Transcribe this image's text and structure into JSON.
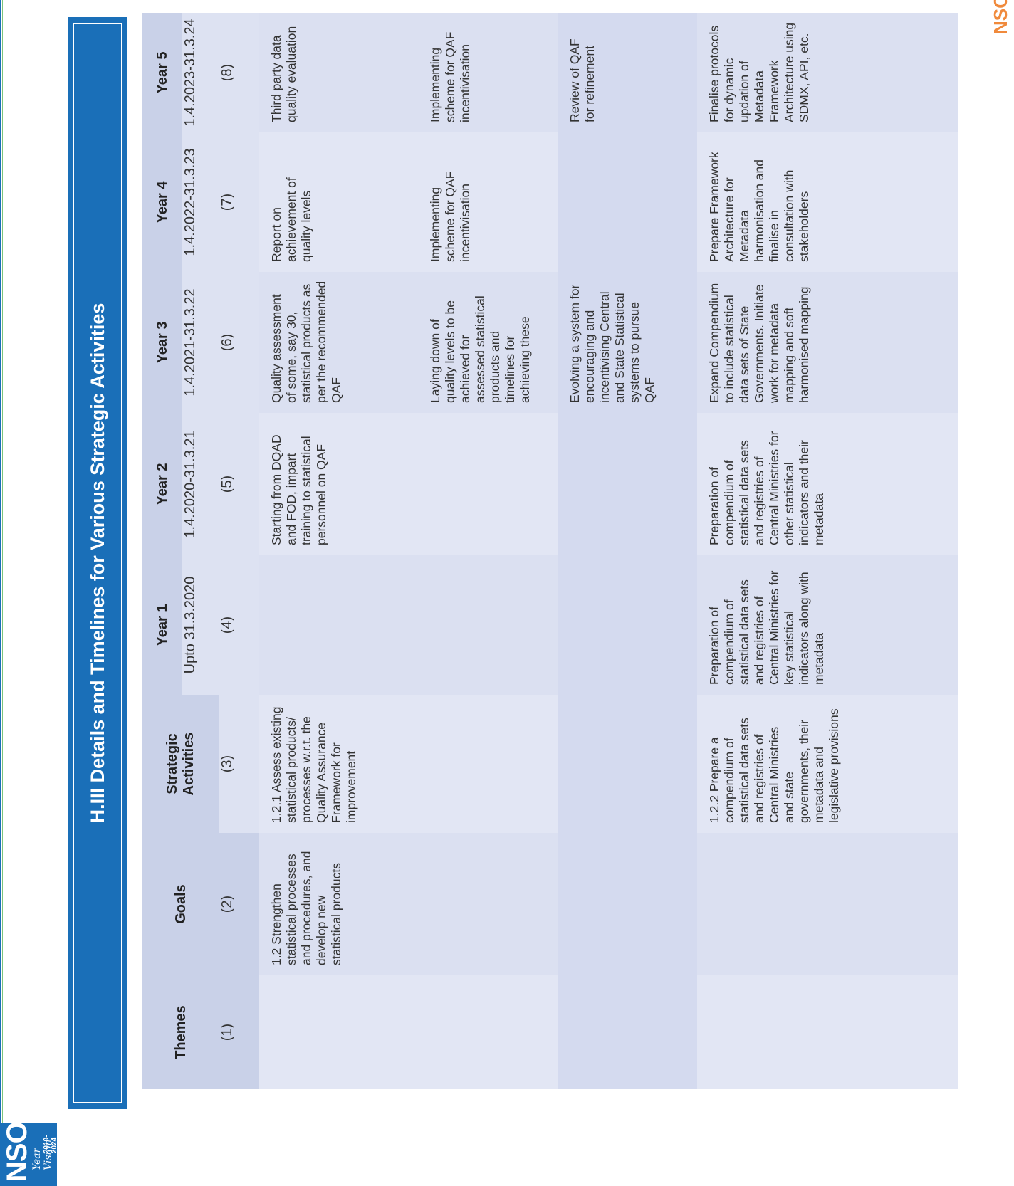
{
  "logo": {
    "text": "NSO",
    "tagline": "Year Vision",
    "years": "2019-2024"
  },
  "corner_logo": "NSO",
  "title": "H.III  Details and Timelines for Various Strategic Activities",
  "headers": {
    "themes": "Themes",
    "goals": "Goals",
    "activities": "Strategic Activities",
    "year1": "Year 1",
    "year2": "Year 2",
    "year3": "Year 3",
    "year4": "Year 4",
    "year5": "Year 5"
  },
  "dates": {
    "year1": "Upto 31.3.2020",
    "year2": "1.4.2020-31.3.21",
    "year3": "1.4.2021-31.3.22",
    "year4": "1.4.2022-31.3.23",
    "year5": "1.4.2023-31.3.24"
  },
  "col_numbers": [
    "(1)",
    "(2)",
    "(3)",
    "(4)",
    "(5)",
    "(6)",
    "(7)",
    "(8)"
  ],
  "rows": [
    {
      "theme": "",
      "goal": "1.2 Strengthen statistical processes and procedures, and develop new statistical products",
      "activity": "1.2.1 Assess existing statistical products/ processes w.r.t. the Quality Assurance Framework for improvement",
      "year1": "",
      "year2": "Starting from DQAD and FOD, impart training to statistical personnel on QAF",
      "year3": "Quality assessment of some, say 30, statistical products as per the recommended QAF",
      "year4": "Report on achievement of quality levels",
      "year5": "Third party data quality evaluation"
    },
    {
      "theme": "",
      "goal": "",
      "activity": "",
      "year1": "",
      "year2": "",
      "year3": "Laying down of quality levels to be achieved for assessed statistical products and timelines for achieving these",
      "year4": "Implementing scheme for QAF incentivisation",
      "year5": "Implementing scheme for QAF incentivisation"
    },
    {
      "theme": "",
      "goal": "",
      "activity": "",
      "year1": "",
      "year2": "",
      "year3": "Evolving a system for encouraging and incentivising Central and State Statistical systems to pursue QAF",
      "year4": "",
      "year5": "Review of QAF for refinement"
    },
    {
      "theme": "",
      "goal": "",
      "activity": "1.2.2 Prepare a compendium of statistical data sets and registries of Central Ministries and state governments, their metadata and legislative provisions",
      "year1": "Preparation of compendium of statistical data sets and registries of Central Ministries for key statistical indicators along with metadata",
      "year2": "Preparation of compendium of statistical data sets and registries of Central Ministries for other statistical indicators and their metadata",
      "year3": "Expand Compendium to include statistical data sets of State Governments. Initiate work for metadata mapping and soft harmonised mapping",
      "year4": "Prepare Framework Architecture for Metadata harmonisation and finalise in consultation with stakeholders",
      "year5": "Finalise protocols for dynamic updation of Metadata Framework Architecture using SDMX, API, etc."
    }
  ]
}
